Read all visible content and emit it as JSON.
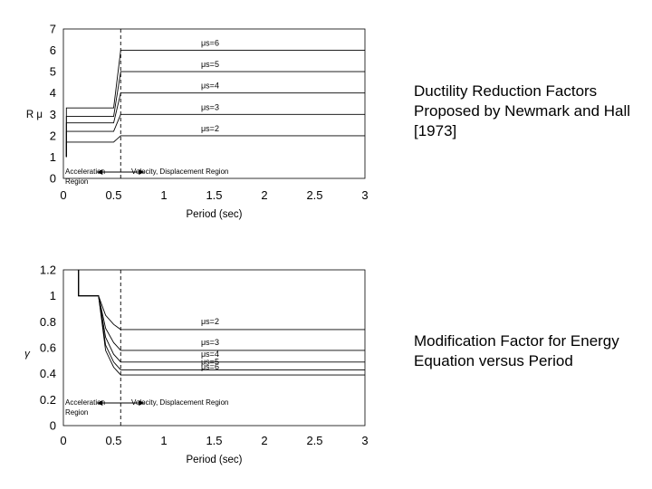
{
  "captions": {
    "top": "Ductility Reduction Factors Proposed by Newmark and Hall [1973]",
    "bottom": "Modification Factor for Energy Equation versus Period"
  },
  "chart_data": [
    {
      "type": "line",
      "title": "",
      "xlabel": "Period (sec)",
      "ylabel": "R μ",
      "xlim": [
        0,
        3
      ],
      "ylim": [
        0,
        7
      ],
      "x_ticks": [
        "0",
        "0.5",
        "1",
        "1.5",
        "2",
        "2.5",
        "3"
      ],
      "y_ticks": [
        "0",
        "1",
        "2",
        "3",
        "4",
        "5",
        "6",
        "7"
      ],
      "region_labels": {
        "acceleration": "Acceleration Region",
        "velocity": "Velocity, Displacement Region"
      },
      "region_boundary_x": 0.57,
      "series": [
        {
          "name": "μs=2",
          "x": [
            0.03,
            0.03,
            0.18,
            0.5,
            0.57,
            3
          ],
          "y": [
            1,
            1.7,
            1.7,
            1.7,
            2,
            2
          ]
        },
        {
          "name": "μs=3",
          "x": [
            0.03,
            0.03,
            0.18,
            0.5,
            0.57,
            3
          ],
          "y": [
            1,
            2.2,
            2.2,
            2.2,
            3,
            3
          ]
        },
        {
          "name": "μs=4",
          "x": [
            0.03,
            0.03,
            0.18,
            0.5,
            0.57,
            3
          ],
          "y": [
            1,
            2.6,
            2.6,
            2.6,
            4,
            4
          ]
        },
        {
          "name": "μs=5",
          "x": [
            0.03,
            0.03,
            0.18,
            0.5,
            0.57,
            3
          ],
          "y": [
            1,
            2.9,
            2.9,
            2.9,
            5,
            5
          ]
        },
        {
          "name": "μs=6",
          "x": [
            0.03,
            0.03,
            0.18,
            0.5,
            0.57,
            3
          ],
          "y": [
            1,
            3.3,
            3.3,
            3.3,
            6,
            6
          ]
        }
      ]
    },
    {
      "type": "line",
      "title": "",
      "xlabel": "Period (sec)",
      "ylabel": "γ",
      "xlim": [
        0,
        3
      ],
      "ylim": [
        0,
        1.2
      ],
      "x_ticks": [
        "0",
        "0.5",
        "1",
        "1.5",
        "2",
        "2.5",
        "3"
      ],
      "y_ticks": [
        "0",
        "0.2",
        "0.4",
        "0.6",
        "0.8",
        "1",
        "1.2"
      ],
      "region_labels": {
        "acceleration": "Acceleration Region",
        "velocity": "Velocity, Displacement Region"
      },
      "region_boundary_x": 0.57,
      "series": [
        {
          "name": "μs=2",
          "x": [
            0.15,
            0.15,
            0.35,
            0.42,
            0.5,
            0.57,
            3
          ],
          "y": [
            1.2,
            1.0,
            1.0,
            0.85,
            0.78,
            0.74,
            0.74
          ]
        },
        {
          "name": "μs=3",
          "x": [
            0.15,
            0.15,
            0.35,
            0.42,
            0.5,
            0.57,
            3
          ],
          "y": [
            1.2,
            1.0,
            1.0,
            0.75,
            0.64,
            0.58,
            0.58
          ]
        },
        {
          "name": "μs=4",
          "x": [
            0.15,
            0.15,
            0.35,
            0.42,
            0.5,
            0.57,
            3
          ],
          "y": [
            1.2,
            1.0,
            1.0,
            0.68,
            0.55,
            0.49,
            0.49
          ]
        },
        {
          "name": "μs=5",
          "x": [
            0.15,
            0.15,
            0.35,
            0.42,
            0.5,
            0.57,
            3
          ],
          "y": [
            1.2,
            1.0,
            1.0,
            0.62,
            0.49,
            0.43,
            0.43
          ]
        },
        {
          "name": "μs=6",
          "x": [
            0.15,
            0.15,
            0.35,
            0.42,
            0.5,
            0.57,
            3
          ],
          "y": [
            1.2,
            1.0,
            1.0,
            0.58,
            0.45,
            0.39,
            0.39
          ]
        }
      ]
    }
  ]
}
